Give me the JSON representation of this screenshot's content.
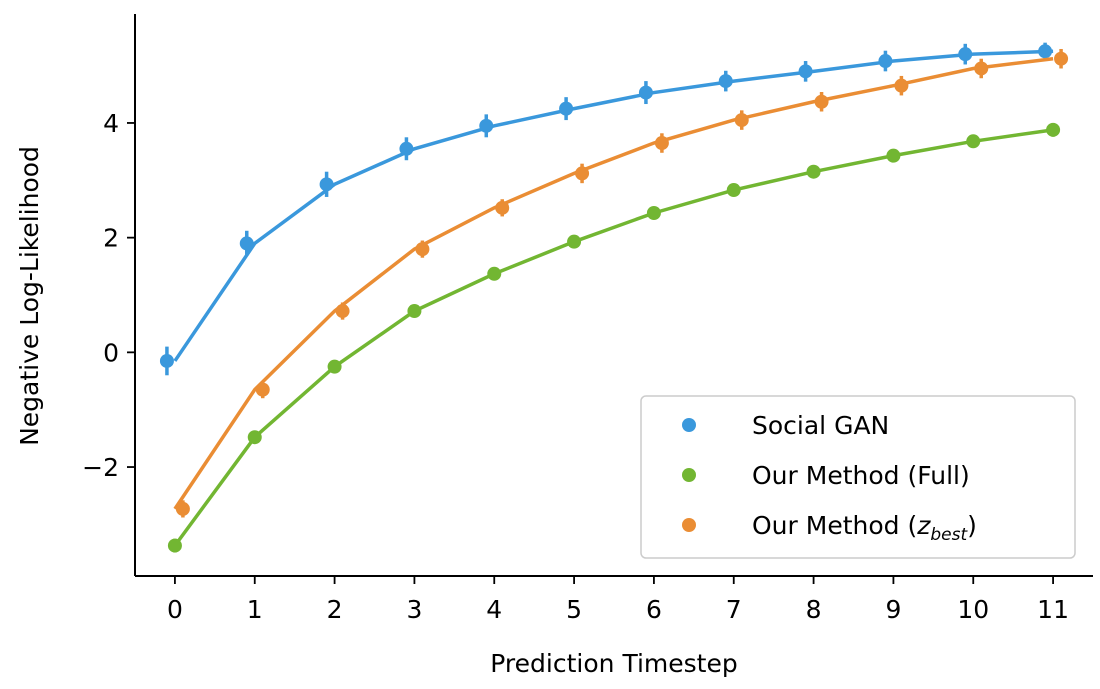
{
  "chart_data": {
    "type": "line",
    "xlabel": "Prediction Timestep",
    "ylabel": "Negative Log-Likelihood",
    "x": [
      0,
      1,
      2,
      3,
      4,
      5,
      6,
      7,
      8,
      9,
      10,
      11
    ],
    "xticks": [
      "0",
      "1",
      "2",
      "3",
      "4",
      "5",
      "6",
      "7",
      "8",
      "9",
      "10",
      "11"
    ],
    "yticks": [
      {
        "value": -2,
        "label": "−2"
      },
      {
        "value": 0,
        "label": "0"
      },
      {
        "value": 2,
        "label": "2"
      },
      {
        "value": 4,
        "label": "4"
      }
    ],
    "xlim": [
      -0.5,
      11.5
    ],
    "ylim": [
      -3.9,
      5.9
    ],
    "grid": false,
    "legend_position": "lower-right",
    "series": [
      {
        "name": "Social GAN",
        "color": "#3a98dc",
        "values": [
          -0.15,
          1.9,
          2.93,
          3.55,
          3.95,
          4.25,
          4.53,
          4.73,
          4.9,
          5.08,
          5.2,
          5.25
        ],
        "err": [
          0.25,
          0.22,
          0.22,
          0.2,
          0.2,
          0.2,
          0.2,
          0.18,
          0.18,
          0.18,
          0.18,
          0.15
        ]
      },
      {
        "name": "Our Method (Full)",
        "color": "#72b632",
        "values": [
          -3.37,
          -1.48,
          -0.25,
          0.72,
          1.37,
          1.93,
          2.43,
          2.83,
          3.15,
          3.43,
          3.68,
          3.88
        ],
        "err": [
          0.12,
          0.1,
          0.1,
          0.1,
          0.1,
          0.1,
          0.1,
          0.1,
          0.1,
          0.1,
          0.1,
          0.12
        ]
      },
      {
        "name": "Our Method (z_best)",
        "legend_main": "Our Method (",
        "legend_sub": "z",
        "legend_subscript": "best",
        "legend_close": ")",
        "color": "#ea8d34",
        "values": [
          -2.73,
          -0.65,
          0.72,
          1.8,
          2.52,
          3.12,
          3.65,
          4.05,
          4.37,
          4.65,
          4.95,
          5.12
        ],
        "err": [
          0.15,
          0.15,
          0.15,
          0.15,
          0.15,
          0.17,
          0.17,
          0.17,
          0.17,
          0.17,
          0.17,
          0.17
        ]
      }
    ]
  }
}
